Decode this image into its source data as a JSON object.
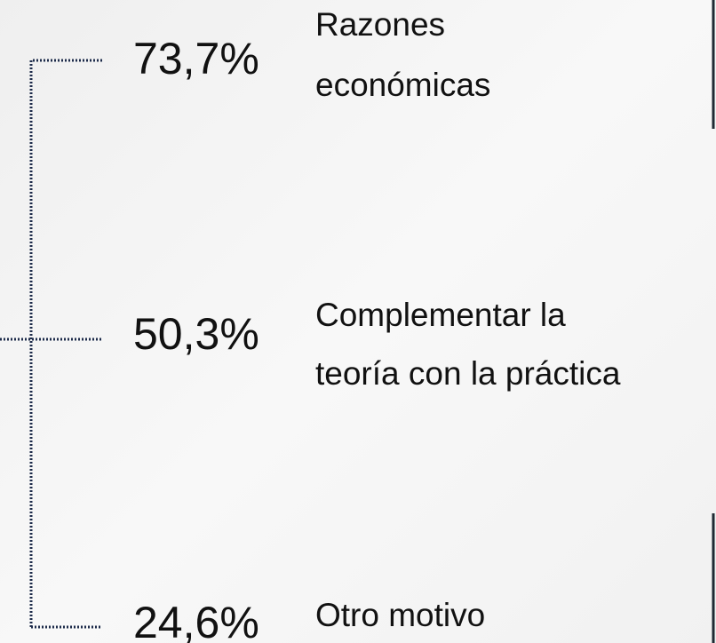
{
  "items": [
    {
      "percent": "73,7%",
      "lines": [
        "Razones",
        "económicas"
      ]
    },
    {
      "percent": "50,3%",
      "lines": [
        "Complementar la",
        "teoría con la práctica"
      ]
    },
    {
      "percent": "24,6%",
      "lines": [
        "Otro motivo"
      ]
    }
  ]
}
